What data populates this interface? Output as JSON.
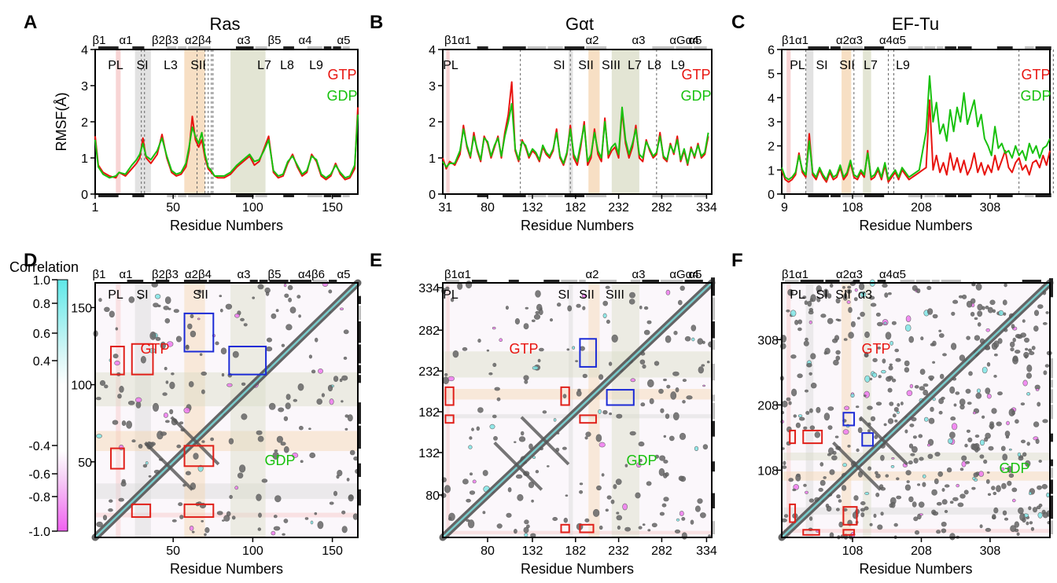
{
  "colors": {
    "gtp": "#e8140f",
    "gdp": "#18c10e",
    "contour": "#555555",
    "box_red": "#e0201a",
    "box_blue": "#1c2bd6",
    "pos": "#7fe6e6",
    "neg": "#f07af0"
  },
  "panels": {
    "A": {
      "label": "A",
      "title": "Ras",
      "ss": [
        "β1",
        "α1",
        "β2β3",
        "α2β4",
        "α3",
        "β5",
        "α4",
        "α5"
      ],
      "regions": [
        "PL",
        "SI",
        "L3",
        "SII",
        "L7",
        "L8",
        "L9"
      ]
    },
    "B": {
      "label": "B",
      "title": "Gαt",
      "ss": [
        "β1α1",
        "α2",
        "α3",
        "αGα4",
        "α5"
      ],
      "regions": [
        "PL",
        "SI",
        "SII",
        "SIII",
        "L7",
        "L8",
        "L9"
      ]
    },
    "C": {
      "label": "C",
      "title": "EF-Tu",
      "ss": [
        "β1α1",
        "α2α3",
        "α4α5"
      ],
      "regions": [
        "PL",
        "SI",
        "SII",
        "L7",
        "L9"
      ]
    },
    "D": {
      "label": "D",
      "ss": [
        "β1",
        "α1",
        "β2β3",
        "α2β4",
        "α3",
        "β5",
        "α4β6",
        "α5"
      ],
      "regions": [
        "PL",
        "SI",
        "SII"
      ]
    },
    "E": {
      "label": "E",
      "ss": [
        "β1α1",
        "α2",
        "α3",
        "αGα4",
        "α5"
      ],
      "regions": [
        "PL",
        "SI",
        "SII",
        "SIII"
      ]
    },
    "F": {
      "label": "F",
      "ss": [
        "β1α1",
        "α2α3",
        "α4α5"
      ],
      "regions": [
        "PL",
        "SI",
        "SII",
        "α3"
      ]
    }
  },
  "common": {
    "legend_gtp": "GTP",
    "legend_gdp": "GDP",
    "xlabel": "Residue Numbers",
    "ylabel": "RMSF(Å)",
    "colorbar_title": "Correlation"
  },
  "colorbar": {
    "ticks": [
      "1.0",
      "0.8",
      "0.6",
      "0.4",
      "-0.4",
      "-0.6",
      "-0.8",
      "-1.0"
    ]
  },
  "chart_data": [
    {
      "type": "line",
      "panel": "A",
      "title": "Ras",
      "xlabel": "Residue Numbers",
      "ylabel": "RMSF(Å)",
      "xlim": [
        1,
        166
      ],
      "ylim": [
        0,
        4
      ],
      "xticks": [
        1,
        50,
        100,
        150
      ],
      "yticks": [
        0,
        1,
        2,
        3,
        4
      ],
      "series": [
        {
          "name": "GTP",
          "x": [
            1,
            3,
            6,
            10,
            14,
            16,
            20,
            24,
            27,
            29,
            31,
            33,
            36,
            40,
            43,
            46,
            49,
            52,
            55,
            58,
            60,
            62,
            64,
            66,
            68,
            70,
            72,
            74,
            76,
            78,
            82,
            86,
            90,
            94,
            98,
            101,
            104,
            107,
            110,
            113,
            116,
            119,
            122,
            125,
            128,
            131,
            134,
            137,
            140,
            143,
            146,
            149,
            152,
            155,
            158,
            161,
            164,
            166
          ],
          "y": [
            1.6,
            0.8,
            0.6,
            0.5,
            0.45,
            0.6,
            0.5,
            0.7,
            0.85,
            1.0,
            1.55,
            1.0,
            0.85,
            1.1,
            1.65,
            1.0,
            0.6,
            0.5,
            0.55,
            0.75,
            1.2,
            2.15,
            1.5,
            1.3,
            1.5,
            1.0,
            0.7,
            0.6,
            0.5,
            0.45,
            0.45,
            0.55,
            0.75,
            0.9,
            1.05,
            0.8,
            0.9,
            1.25,
            1.6,
            0.6,
            0.45,
            0.5,
            0.85,
            1.1,
            0.75,
            0.5,
            0.6,
            1.1,
            0.9,
            0.5,
            0.4,
            0.5,
            0.85,
            0.55,
            0.4,
            0.45,
            0.7,
            2.4
          ]
        },
        {
          "name": "GDP",
          "x": [
            1,
            3,
            6,
            10,
            14,
            16,
            20,
            24,
            27,
            29,
            31,
            33,
            36,
            40,
            43,
            46,
            49,
            52,
            55,
            58,
            60,
            62,
            64,
            66,
            68,
            70,
            72,
            74,
            76,
            78,
            82,
            86,
            90,
            94,
            98,
            101,
            104,
            107,
            110,
            113,
            116,
            119,
            122,
            125,
            128,
            131,
            134,
            137,
            140,
            143,
            146,
            149,
            152,
            155,
            158,
            161,
            164,
            166
          ],
          "y": [
            1.5,
            0.75,
            0.55,
            0.45,
            0.5,
            0.6,
            0.55,
            0.8,
            0.95,
            1.1,
            1.4,
            1.05,
            0.95,
            1.2,
            1.55,
            1.05,
            0.65,
            0.55,
            0.6,
            0.85,
            1.3,
            1.85,
            1.6,
            1.4,
            1.7,
            1.1,
            0.75,
            0.65,
            0.5,
            0.5,
            0.5,
            0.6,
            0.8,
            0.95,
            1.1,
            0.9,
            0.95,
            1.2,
            1.5,
            0.65,
            0.5,
            0.55,
            0.9,
            1.05,
            0.8,
            0.55,
            0.65,
            1.05,
            0.95,
            0.55,
            0.45,
            0.55,
            0.8,
            0.6,
            0.45,
            0.5,
            0.8,
            2.2
          ]
        }
      ]
    },
    {
      "type": "line",
      "panel": "B",
      "title": "Gαt",
      "xlabel": "Residue Numbers",
      "xlim": [
        28,
        340
      ],
      "ylim": [
        0,
        4
      ],
      "xticks": [
        31,
        80,
        132,
        182,
        232,
        282,
        334
      ],
      "yticks": [
        0,
        1,
        2,
        3,
        4
      ],
      "series": [
        {
          "name": "GTP",
          "x": [
            28,
            32,
            36,
            42,
            48,
            52,
            56,
            60,
            64,
            68,
            72,
            76,
            80,
            84,
            88,
            92,
            96,
            100,
            104,
            108,
            112,
            116,
            120,
            124,
            128,
            132,
            136,
            140,
            144,
            148,
            152,
            156,
            160,
            164,
            168,
            172,
            176,
            180,
            184,
            188,
            192,
            196,
            200,
            204,
            208,
            212,
            216,
            220,
            224,
            228,
            232,
            236,
            240,
            244,
            248,
            252,
            256,
            260,
            264,
            268,
            272,
            276,
            280,
            284,
            288,
            292,
            296,
            300,
            304,
            308,
            312,
            316,
            320,
            324,
            328,
            332,
            336
          ],
          "y": [
            1.0,
            0.7,
            0.9,
            0.8,
            1.1,
            1.9,
            1.3,
            1.0,
            1.7,
            1.2,
            0.9,
            1.6,
            1.4,
            1.0,
            1.3,
            1.6,
            1.0,
            1.7,
            2.2,
            3.1,
            1.2,
            0.9,
            1.5,
            1.3,
            1.0,
            1.2,
            1.1,
            0.9,
            1.3,
            1.1,
            1.0,
            1.2,
            1.8,
            1.0,
            0.8,
            1.1,
            1.9,
            1.0,
            0.8,
            1.3,
            2.0,
            0.8,
            1.0,
            1.8,
            1.1,
            0.9,
            2.1,
            1.0,
            1.2,
            1.3,
            1.0,
            2.3,
            1.4,
            1.0,
            1.3,
            1.9,
            1.0,
            0.9,
            1.5,
            1.2,
            1.0,
            1.1,
            1.7,
            1.0,
            0.9,
            1.4,
            1.1,
            1.6,
            0.9,
            1.2,
            0.8,
            1.3,
            1.0,
            1.4,
            1.0,
            1.1,
            1.6
          ]
        },
        {
          "name": "GDP",
          "x": [
            28,
            32,
            36,
            42,
            48,
            52,
            56,
            60,
            64,
            68,
            72,
            76,
            80,
            84,
            88,
            92,
            96,
            100,
            104,
            108,
            112,
            116,
            120,
            124,
            128,
            132,
            136,
            140,
            144,
            148,
            152,
            156,
            160,
            164,
            168,
            172,
            176,
            180,
            184,
            188,
            192,
            196,
            200,
            204,
            208,
            212,
            216,
            220,
            224,
            228,
            232,
            236,
            240,
            244,
            248,
            252,
            256,
            260,
            264,
            268,
            272,
            276,
            280,
            284,
            288,
            292,
            296,
            300,
            304,
            308,
            312,
            316,
            320,
            324,
            328,
            332,
            336
          ],
          "y": [
            0.9,
            0.75,
            0.85,
            0.85,
            1.2,
            1.8,
            1.35,
            1.05,
            1.6,
            1.25,
            0.95,
            1.55,
            1.45,
            1.05,
            1.35,
            1.55,
            1.05,
            1.6,
            2.0,
            2.5,
            1.25,
            0.95,
            1.45,
            1.35,
            1.05,
            1.25,
            1.15,
            0.95,
            1.35,
            1.15,
            1.05,
            1.25,
            1.7,
            1.05,
            0.85,
            1.15,
            1.8,
            1.1,
            0.9,
            1.4,
            1.9,
            0.9,
            1.1,
            1.7,
            1.2,
            1.0,
            2.0,
            1.1,
            1.3,
            1.4,
            1.1,
            2.4,
            1.5,
            1.1,
            1.4,
            1.8,
            1.1,
            1.0,
            1.45,
            1.25,
            1.05,
            1.15,
            1.6,
            1.05,
            0.95,
            1.35,
            1.15,
            1.5,
            0.95,
            1.25,
            0.85,
            1.25,
            1.05,
            1.35,
            1.05,
            1.15,
            1.7
          ]
        }
      ]
    },
    {
      "type": "line",
      "panel": "C",
      "title": "EF-Tu",
      "xlabel": "Residue Numbers",
      "xlim": [
        5,
        395
      ],
      "ylim": [
        0,
        6
      ],
      "xticks": [
        9,
        108,
        208,
        308
      ],
      "yticks": [
        0,
        1,
        2,
        3,
        4,
        5,
        6
      ],
      "series": [
        {
          "name": "GTP",
          "x": [
            5,
            10,
            15,
            20,
            25,
            30,
            35,
            40,
            45,
            50,
            55,
            60,
            65,
            70,
            75,
            80,
            85,
            90,
            95,
            100,
            105,
            110,
            115,
            120,
            125,
            130,
            135,
            140,
            145,
            150,
            155,
            160,
            165,
            170,
            175,
            180,
            185,
            190,
            195,
            200,
            205,
            210,
            215,
            220,
            225,
            230,
            235,
            240,
            245,
            250,
            255,
            260,
            265,
            270,
            275,
            280,
            285,
            290,
            295,
            300,
            305,
            310,
            315,
            320,
            325,
            330,
            335,
            340,
            345,
            350,
            355,
            360,
            365,
            370,
            375,
            380,
            385,
            390,
            395
          ],
          "y": [
            1.0,
            0.6,
            0.5,
            0.6,
            0.8,
            1.7,
            0.9,
            0.7,
            2.5,
            0.8,
            0.6,
            1.0,
            0.7,
            0.5,
            0.9,
            0.6,
            0.7,
            1.1,
            0.6,
            0.8,
            1.3,
            0.7,
            0.6,
            0.9,
            0.7,
            1.8,
            0.6,
            0.7,
            1.0,
            0.6,
            1.2,
            0.5,
            0.7,
            0.9,
            0.6,
            1.0,
            0.8,
            0.6,
            0.7,
            0.8,
            0.9,
            1.0,
            1.1,
            3.9,
            1.0,
            1.6,
            0.9,
            1.3,
            0.8,
            1.7,
            1.0,
            1.5,
            0.9,
            1.4,
            0.8,
            1.1,
            1.7,
            0.9,
            1.3,
            0.8,
            1.2,
            0.9,
            1.6,
            1.0,
            1.4,
            1.8,
            1.1,
            0.9,
            1.3,
            1.5,
            1.0,
            1.2,
            0.8,
            1.3,
            1.4,
            1.1,
            1.6,
            1.2,
            1.8
          ]
        },
        {
          "name": "GDP",
          "x": [
            5,
            10,
            15,
            20,
            25,
            30,
            35,
            40,
            45,
            50,
            55,
            60,
            65,
            70,
            75,
            80,
            85,
            90,
            95,
            100,
            105,
            110,
            115,
            120,
            125,
            130,
            135,
            140,
            145,
            150,
            155,
            160,
            165,
            170,
            175,
            180,
            185,
            190,
            195,
            200,
            205,
            210,
            215,
            220,
            225,
            230,
            235,
            240,
            245,
            250,
            255,
            260,
            265,
            270,
            275,
            280,
            285,
            290,
            295,
            300,
            305,
            310,
            315,
            320,
            325,
            330,
            335,
            340,
            345,
            350,
            355,
            360,
            365,
            370,
            375,
            380,
            385,
            390,
            395
          ],
          "y": [
            1.1,
            0.7,
            0.6,
            0.7,
            0.9,
            1.6,
            1.0,
            0.8,
            2.2,
            0.9,
            0.7,
            1.1,
            0.8,
            0.6,
            1.0,
            0.7,
            0.8,
            1.2,
            0.7,
            0.9,
            1.4,
            0.8,
            0.7,
            1.0,
            0.8,
            1.7,
            0.7,
            0.8,
            1.1,
            0.7,
            1.3,
            0.6,
            0.8,
            1.0,
            0.7,
            1.1,
            0.9,
            0.7,
            0.8,
            0.9,
            1.0,
            1.8,
            2.6,
            4.9,
            3.0,
            3.8,
            2.5,
            2.9,
            2.2,
            3.5,
            2.6,
            3.6,
            3.0,
            4.2,
            2.9,
            3.4,
            3.9,
            2.8,
            3.3,
            2.3,
            2.0,
            1.6,
            2.8,
            1.9,
            2.1,
            1.7,
            1.8,
            1.5,
            2.0,
            1.6,
            1.8,
            1.4,
            2.1,
            1.7,
            2.0,
            1.5,
            1.9,
            2.0,
            2.3
          ]
        }
      ]
    },
    {
      "type": "heatmap",
      "panel": "D",
      "xlabel": "Residue Numbers",
      "xlim": [
        1,
        166
      ],
      "xticks": [
        50,
        100,
        150
      ],
      "yticks": [
        50,
        100,
        150
      ],
      "upper": "GTP",
      "lower": "GDP",
      "value_range": [
        -1.0,
        1.0
      ]
    },
    {
      "type": "heatmap",
      "panel": "E",
      "xlabel": "Residue Numbers",
      "xlim": [
        28,
        340
      ],
      "xticks": [
        80,
        132,
        182,
        232,
        282,
        334
      ],
      "yticks": [
        80,
        132,
        182,
        232,
        282,
        334
      ],
      "upper": "GTP",
      "lower": "GDP",
      "value_range": [
        -1.0,
        1.0
      ]
    },
    {
      "type": "heatmap",
      "panel": "F",
      "xlabel": "Residue Numbers",
      "xlim": [
        5,
        395
      ],
      "xticks": [
        108,
        208,
        308
      ],
      "yticks": [
        108,
        208,
        308
      ],
      "upper": "GTP",
      "lower": "GDP",
      "value_range": [
        -1.0,
        1.0
      ]
    }
  ]
}
